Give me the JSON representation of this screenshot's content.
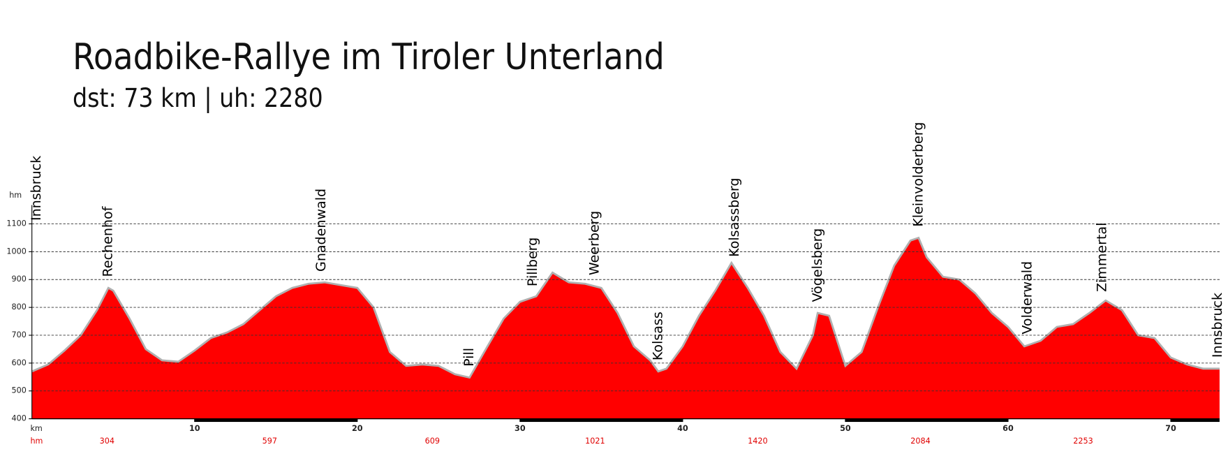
{
  "chart_data": {
    "type": "area",
    "title": "Roadbike-Rallye im Tiroler Unterland",
    "subtitle": "dst: 73 km | uh: 2280",
    "x_label": "km",
    "y_label": "hm",
    "color": "#ff0000",
    "x": [
      0,
      1,
      2,
      3,
      4,
      4.7,
      5,
      6,
      7,
      8,
      9,
      10,
      11,
      12,
      13,
      14,
      15,
      16,
      17,
      18,
      19,
      20,
      21,
      22,
      23,
      24,
      25,
      26,
      26.9,
      28,
      29,
      30,
      31,
      32,
      33,
      34,
      35,
      36,
      37,
      38,
      38.5,
      39,
      40,
      41,
      42,
      43,
      44,
      45,
      46,
      47,
      48,
      48.3,
      49,
      50,
      51,
      52,
      53,
      54,
      54.5,
      55,
      56,
      57,
      58,
      59,
      60,
      61,
      62,
      63,
      64,
      65,
      66,
      67,
      68,
      69,
      70,
      71,
      72,
      73
    ],
    "y": [
      570,
      595,
      645,
      700,
      790,
      870,
      860,
      760,
      650,
      610,
      605,
      645,
      690,
      710,
      740,
      790,
      840,
      870,
      885,
      890,
      880,
      870,
      800,
      640,
      590,
      595,
      590,
      560,
      548,
      660,
      760,
      820,
      840,
      925,
      890,
      885,
      870,
      780,
      660,
      610,
      570,
      580,
      660,
      770,
      860,
      960,
      870,
      770,
      640,
      580,
      700,
      780,
      770,
      590,
      640,
      800,
      950,
      1040,
      1050,
      980,
      910,
      900,
      850,
      780,
      730,
      660,
      680,
      730,
      740,
      780,
      825,
      790,
      700,
      690,
      620,
      595,
      580,
      580
    ],
    "xlim": [
      0,
      73
    ],
    "ylim": [
      400,
      1100
    ],
    "xticks": [
      10,
      20,
      30,
      40,
      50,
      60,
      70
    ],
    "yticks": [
      400,
      500,
      600,
      700,
      800,
      900,
      1000,
      1100
    ],
    "grid": true,
    "places": [
      {
        "name": "Innsbruck",
        "km": 0
      },
      {
        "name": "Rechenhof",
        "km": 4.7
      },
      {
        "name": "Gnadenwald",
        "km": 17.8
      },
      {
        "name": "Pill",
        "km": 26.9
      },
      {
        "name": "Pillberg",
        "km": 30.8
      },
      {
        "name": "Weerberg",
        "km": 34.6
      },
      {
        "name": "Kolsass",
        "km": 38.5
      },
      {
        "name": "Kolsassberg",
        "km": 43.2
      },
      {
        "name": "Vögelsberg",
        "km": 48.3
      },
      {
        "name": "Kleinvolderberg",
        "km": 54.5
      },
      {
        "name": "Volderwald",
        "km": 61.2
      },
      {
        "name": "Zimmertal",
        "km": 65.8
      },
      {
        "name": "Innsbruck",
        "km": 73
      }
    ],
    "climb_label": "hm",
    "cumulative_climb": [
      304,
      597,
      609,
      1021,
      1420,
      2084,
      2253
    ]
  }
}
